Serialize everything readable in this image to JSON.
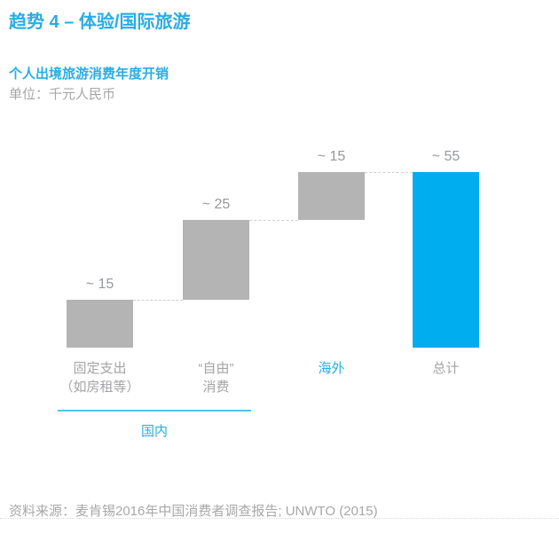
{
  "page": {
    "title": "趋势 4 – 体验/国际旅游",
    "source": "资料来源：麦肯锡2016年中国消费者调查报告; UNWTO (2015)"
  },
  "colors": {
    "accent_cyan": "#29ADE3",
    "bar_blue": "#00AEEF",
    "bar_gray": "#B4B4B4",
    "value_label_gray": "#97999C",
    "category_label_gray": "#A4A4A6",
    "unit_text_gray": "#A7A7A9",
    "source_text_gray": "#A8A8AA",
    "connector_gray": "#CFCFCF",
    "group_line_cyan": "#55C1E9",
    "divider_gray": "#D8D8D8"
  },
  "chart_data": {
    "type": "bar",
    "subtype": "waterfall",
    "title": "个人出境旅游消费年度开销",
    "unit": "单位：千元人民币",
    "ylabel": "千元人民币",
    "grid": false,
    "legend": false,
    "baseline_value": 0,
    "bars": [
      {
        "label_lines": [
          "固定支出",
          "（如房租等）"
        ],
        "start": 0,
        "value": 15,
        "cumulative_end": 15,
        "display_value": "~ 15",
        "fill": "gray",
        "label_color": "gray"
      },
      {
        "label_lines": [
          "“自由”",
          "消费"
        ],
        "start": 15,
        "value": 25,
        "cumulative_end": 40,
        "display_value": "~ 25",
        "fill": "gray",
        "label_color": "gray"
      },
      {
        "label_lines": [
          "海外"
        ],
        "start": 40,
        "value": 15,
        "cumulative_end": 55,
        "display_value": "~ 15",
        "fill": "gray",
        "label_color": "cyan"
      },
      {
        "label_lines": [
          "总计"
        ],
        "start": 0,
        "value": 55,
        "cumulative_end": 55,
        "display_value": "~ 55",
        "fill": "blue",
        "label_color": "gray",
        "is_total": true
      }
    ],
    "group": {
      "label": "国内",
      "covers_bars": [
        0,
        1
      ]
    }
  }
}
